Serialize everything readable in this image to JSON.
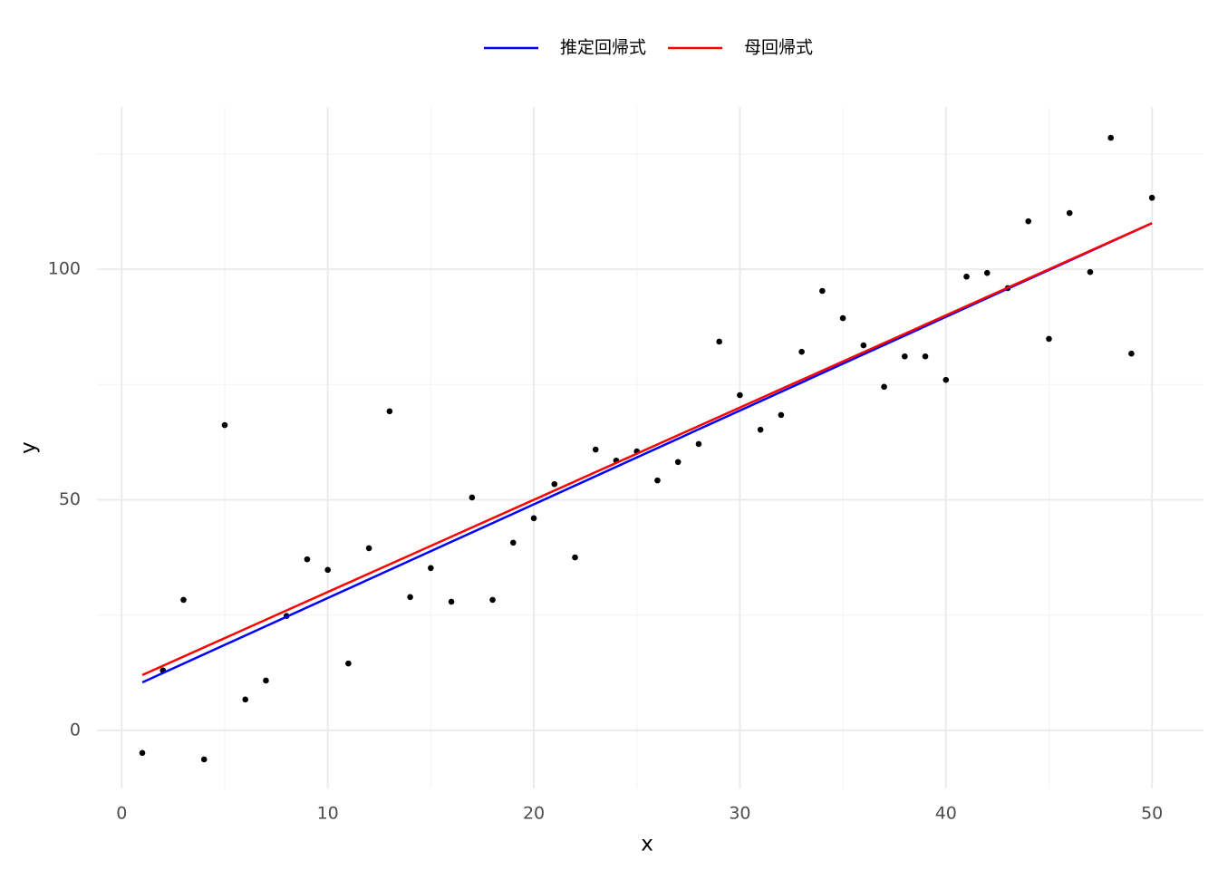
{
  "chart_data": {
    "type": "scatter",
    "x_label": "x",
    "y_label": "y",
    "points": {
      "color": "#000000",
      "x": [
        1,
        2,
        3,
        4,
        5,
        6,
        7,
        8,
        9,
        10,
        11,
        12,
        13,
        14,
        15,
        16,
        17,
        18,
        19,
        20,
        21,
        22,
        23,
        24,
        25,
        26,
        27,
        28,
        29,
        30,
        31,
        32,
        33,
        34,
        35,
        36,
        37,
        38,
        39,
        40,
        41,
        42,
        43,
        44,
        45,
        46,
        47,
        48,
        49,
        50
      ],
      "y": [
        -4.9,
        13.0,
        28.3,
        -6.3,
        66.2,
        6.7,
        10.8,
        24.8,
        37.1,
        34.8,
        14.5,
        39.5,
        69.2,
        28.9,
        35.2,
        27.9,
        50.5,
        28.3,
        40.7,
        46.0,
        53.4,
        37.5,
        60.9,
        58.5,
        60.5,
        54.2,
        58.2,
        62.1,
        84.3,
        72.7,
        65.2,
        68.4,
        82.1,
        95.3,
        89.4,
        83.5,
        74.5,
        81.1,
        81.1,
        76.0,
        98.4,
        99.2,
        95.9,
        110.4,
        84.9,
        112.2,
        99.4,
        128.5,
        81.7,
        115.5
      ]
    },
    "series": [
      {
        "name": "推定回帰式",
        "color": "#0000ff",
        "x": [
          1,
          50
        ],
        "values": [
          10.4,
          110.0
        ]
      },
      {
        "name": "母回帰式",
        "color": "#ff0000",
        "x": [
          1,
          50
        ],
        "values": [
          12.0,
          110.0
        ]
      }
    ],
    "xlim": [
      -1.2,
      52.5
    ],
    "ylim": [
      -12.6,
      135.2
    ],
    "xticks": [
      0,
      10,
      20,
      30,
      40,
      50
    ],
    "yticks": [
      0,
      50,
      100
    ],
    "x_minor_ticks": [
      5,
      15,
      25,
      35,
      45
    ],
    "y_minor_ticks": [
      25,
      75,
      125
    ],
    "grid": true,
    "legend": "top"
  }
}
